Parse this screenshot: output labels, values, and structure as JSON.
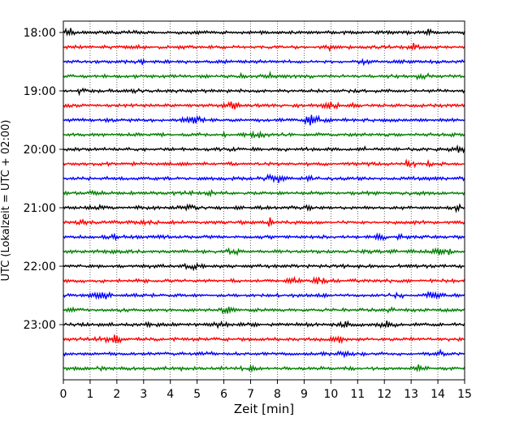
{
  "chart_data": {
    "type": "line",
    "title": "",
    "xlabel": "Zeit  [min]",
    "ylabel": "UTC (Lokalzeit = UTC + 02:00)",
    "xlim": [
      0,
      15
    ],
    "x_ticks": [
      "0",
      "1",
      "2",
      "3",
      "4",
      "5",
      "6",
      "7",
      "8",
      "9",
      "10",
      "11",
      "12",
      "13",
      "14",
      "15"
    ],
    "y_ticks": [
      "18:00",
      "19:00",
      "20:00",
      "21:00",
      "22:00",
      "23:00"
    ],
    "trace_interval_minutes": 15,
    "grid": {
      "vertical_dotted": true,
      "horizontal": false
    },
    "series_colors": [
      "#000000",
      "#ff0000",
      "#0000ff",
      "#008000"
    ],
    "traces": [
      {
        "start": "18:00",
        "color": "#000000"
      },
      {
        "start": "18:15",
        "color": "#ff0000"
      },
      {
        "start": "18:30",
        "color": "#0000ff"
      },
      {
        "start": "18:45",
        "color": "#008000"
      },
      {
        "start": "19:00",
        "color": "#000000"
      },
      {
        "start": "19:15",
        "color": "#ff0000"
      },
      {
        "start": "19:30",
        "color": "#0000ff"
      },
      {
        "start": "19:45",
        "color": "#008000"
      },
      {
        "start": "20:00",
        "color": "#000000"
      },
      {
        "start": "20:15",
        "color": "#ff0000"
      },
      {
        "start": "20:30",
        "color": "#0000ff"
      },
      {
        "start": "20:45",
        "color": "#008000"
      },
      {
        "start": "21:00",
        "color": "#000000"
      },
      {
        "start": "21:15",
        "color": "#ff0000"
      },
      {
        "start": "21:30",
        "color": "#0000ff"
      },
      {
        "start": "21:45",
        "color": "#008000"
      },
      {
        "start": "22:00",
        "color": "#000000"
      },
      {
        "start": "22:15",
        "color": "#ff0000"
      },
      {
        "start": "22:30",
        "color": "#0000ff"
      },
      {
        "start": "22:45",
        "color": "#008000"
      },
      {
        "start": "23:00",
        "color": "#000000"
      },
      {
        "start": "23:15",
        "color": "#ff0000"
      },
      {
        "start": "23:30",
        "color": "#0000ff"
      },
      {
        "start": "23:45",
        "color": "#008000"
      }
    ]
  }
}
